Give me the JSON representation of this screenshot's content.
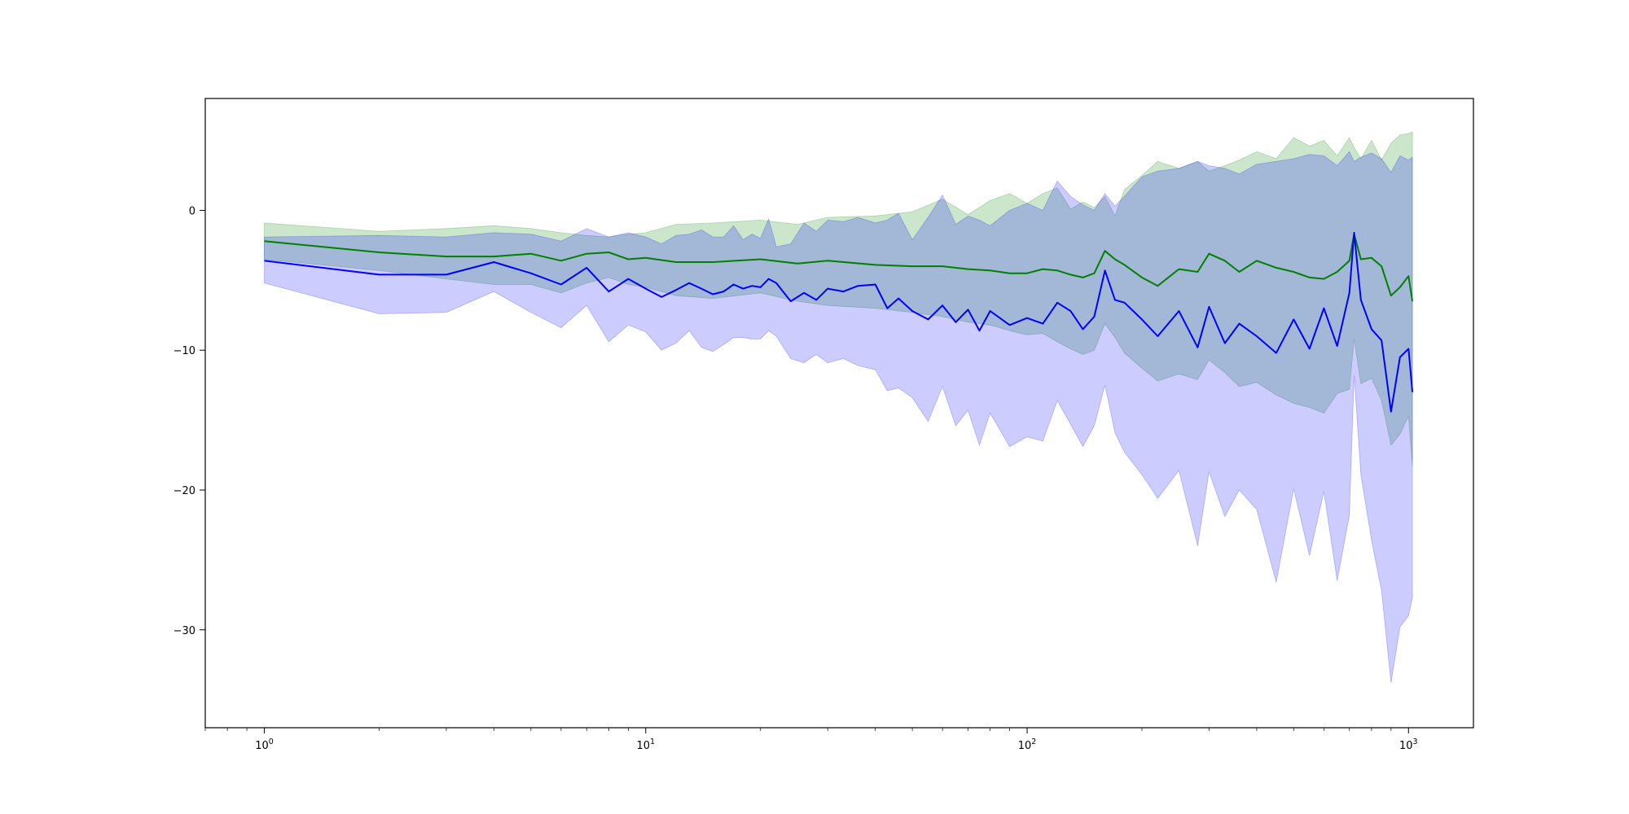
{
  "chart_data": {
    "type": "line",
    "title": "",
    "xlabel": "",
    "ylabel": "",
    "xscale": "log",
    "xlim": [
      0.7,
      1480
    ],
    "ylim": [
      -37,
      8
    ],
    "grid": false,
    "legend": "none",
    "x_ticks": [
      {
        "value": 1,
        "base": "10",
        "exp": "0"
      },
      {
        "value": 10,
        "base": "10",
        "exp": "1"
      },
      {
        "value": 100,
        "base": "10",
        "exp": "2"
      },
      {
        "value": 1000,
        "base": "10",
        "exp": "3"
      }
    ],
    "y_ticks": [
      {
        "value": 0,
        "label": "0"
      },
      {
        "value": -10,
        "label": "−10"
      },
      {
        "value": -20,
        "label": "−20"
      },
      {
        "value": -30,
        "label": "−30"
      }
    ],
    "series": [
      {
        "color": "#008000",
        "band_color": "#008000",
        "band_opacity": 0.2,
        "x": [
          1,
          2,
          3,
          4,
          5,
          6,
          7,
          8,
          9,
          10,
          12,
          15,
          20,
          25,
          30,
          40,
          50,
          60,
          70,
          80,
          90,
          100,
          110,
          120,
          130,
          140,
          150,
          160,
          170,
          180,
          200,
          220,
          250,
          280,
          300,
          330,
          360,
          400,
          450,
          500,
          550,
          600,
          650,
          700,
          720,
          750,
          800,
          850,
          900,
          950,
          1000,
          1024
        ],
        "mean": [
          -2.2,
          -3.0,
          -3.3,
          -3.3,
          -3.1,
          -3.6,
          -3.1,
          -3.0,
          -3.5,
          -3.4,
          -3.7,
          -3.7,
          -3.5,
          -3.8,
          -3.6,
          -3.9,
          -4.0,
          -4.0,
          -4.2,
          -4.3,
          -4.5,
          -4.5,
          -4.2,
          -4.3,
          -4.6,
          -4.8,
          -4.5,
          -2.9,
          -3.5,
          -3.9,
          -4.8,
          -5.4,
          -4.2,
          -4.4,
          -3.1,
          -3.6,
          -4.4,
          -3.6,
          -4.1,
          -4.4,
          -4.8,
          -4.9,
          -4.4,
          -3.6,
          -1.7,
          -3.5,
          -3.4,
          -4.0,
          -6.1,
          -5.5,
          -4.7,
          -6.5
        ],
        "upper": [
          -0.9,
          -1.5,
          -1.3,
          -1.1,
          -1.3,
          -1.6,
          -1.8,
          -1.9,
          -1.7,
          -1.6,
          -1.0,
          -0.9,
          -0.7,
          -1.0,
          -0.5,
          -0.4,
          -0.1,
          0.8,
          -0.3,
          0.7,
          1.2,
          0.5,
          1.2,
          1.6,
          0.1,
          0.6,
          0.2,
          1.0,
          -0.4,
          1.5,
          2.5,
          3.5,
          3.0,
          3.5,
          2.8,
          3.2,
          3.6,
          4.2,
          3.7,
          5.2,
          4.6,
          5.0,
          3.9,
          5.2,
          4.5,
          3.7,
          5.0,
          3.6,
          4.8,
          5.4,
          5.5,
          5.6
        ],
        "lower": [
          -3.5,
          -4.3,
          -4.9,
          -5.3,
          -5.3,
          -5.9,
          -5.2,
          -4.8,
          -5.3,
          -5.5,
          -6.1,
          -6.3,
          -5.9,
          -6.5,
          -6.8,
          -7.0,
          -7.3,
          -7.6,
          -8.0,
          -8.2,
          -8.6,
          -8.9,
          -8.8,
          -9.4,
          -9.9,
          -10.3,
          -10.0,
          -8.1,
          -9.1,
          -10.2,
          -11.3,
          -12.2,
          -11.7,
          -12.1,
          -10.7,
          -11.6,
          -12.6,
          -12.3,
          -13.2,
          -13.8,
          -14.1,
          -14.5,
          -13.1,
          -12.8,
          -9.2,
          -12.4,
          -12.0,
          -13.6,
          -16.8,
          -16.0,
          -14.7,
          -18.3
        ]
      },
      {
        "color": "#0000ff",
        "band_color": "#0000ff",
        "band_opacity": 0.2,
        "x": [
          1,
          2,
          3,
          4,
          5,
          6,
          7,
          8,
          9,
          10,
          11,
          12,
          13,
          14,
          15,
          16,
          17,
          18,
          19,
          20,
          21,
          22,
          24,
          26,
          28,
          30,
          33,
          36,
          40,
          43,
          46,
          50,
          55,
          60,
          65,
          70,
          75,
          80,
          90,
          100,
          110,
          120,
          130,
          140,
          150,
          160,
          170,
          180,
          200,
          220,
          250,
          280,
          300,
          330,
          360,
          400,
          450,
          500,
          550,
          600,
          650,
          700,
          720,
          750,
          800,
          850,
          900,
          950,
          1000,
          1024
        ],
        "mean": [
          -3.6,
          -4.6,
          -4.6,
          -3.7,
          -4.5,
          -5.3,
          -4.1,
          -5.8,
          -4.9,
          -5.6,
          -6.2,
          -5.7,
          -5.2,
          -5.6,
          -6.0,
          -5.8,
          -5.3,
          -5.6,
          -5.4,
          -5.5,
          -4.9,
          -5.2,
          -6.5,
          -5.9,
          -6.4,
          -5.6,
          -5.8,
          -5.4,
          -5.3,
          -7.0,
          -6.3,
          -7.2,
          -7.8,
          -6.8,
          -8.0,
          -7.1,
          -8.6,
          -7.2,
          -8.2,
          -7.7,
          -8.1,
          -6.6,
          -7.2,
          -8.5,
          -7.6,
          -4.3,
          -6.4,
          -6.6,
          -7.8,
          -9.0,
          -7.2,
          -9.8,
          -6.9,
          -9.5,
          -8.1,
          -9.0,
          -10.2,
          -7.8,
          -9.9,
          -7.0,
          -9.7,
          -5.9,
          -1.6,
          -6.4,
          -8.5,
          -9.3,
          -14.4,
          -10.5,
          -9.9,
          -13.0
        ],
        "upper": [
          -1.9,
          -1.8,
          -1.9,
          -1.6,
          -1.7,
          -2.2,
          -1.3,
          -1.9,
          -1.6,
          -1.9,
          -2.4,
          -1.8,
          -1.7,
          -1.4,
          -1.9,
          -1.9,
          -1.1,
          -2.1,
          -1.7,
          -2.0,
          -0.6,
          -2.6,
          -2.4,
          -0.9,
          -1.5,
          -0.7,
          -0.8,
          -0.5,
          -0.9,
          -0.7,
          -0.2,
          -2.1,
          -0.5,
          1.1,
          -1.0,
          -0.4,
          -0.7,
          -1.1,
          0.0,
          0.5,
          0.0,
          2.1,
          1.0,
          0.4,
          0.0,
          1.2,
          0.3,
          1.0,
          2.4,
          2.8,
          3.0,
          3.5,
          3.2,
          3.0,
          2.6,
          3.3,
          3.5,
          3.7,
          4.0,
          3.9,
          3.2,
          4.2,
          3.5,
          3.8,
          4.1,
          3.7,
          2.7,
          3.9,
          3.6,
          3.8
        ],
        "lower": [
          -5.2,
          -7.4,
          -7.3,
          -5.8,
          -7.3,
          -8.4,
          -6.8,
          -9.4,
          -8.2,
          -8.7,
          -10.0,
          -9.5,
          -8.6,
          -9.8,
          -10.1,
          -9.6,
          -9.1,
          -9.1,
          -9.2,
          -9.2,
          -8.6,
          -9.0,
          -10.6,
          -10.9,
          -10.3,
          -10.9,
          -10.6,
          -11.1,
          -11.4,
          -12.9,
          -12.7,
          -13.4,
          -15.1,
          -12.6,
          -15.4,
          -14.3,
          -16.8,
          -14.5,
          -16.9,
          -16.2,
          -16.5,
          -13.6,
          -15.3,
          -16.9,
          -15.4,
          -12.5,
          -15.9,
          -17.3,
          -18.9,
          -20.6,
          -18.6,
          -24.0,
          -18.7,
          -21.9,
          -20.0,
          -21.4,
          -26.6,
          -19.9,
          -24.7,
          -20.1,
          -26.5,
          -21.8,
          -11.8,
          -18.9,
          -23.6,
          -27.2,
          -33.8,
          -29.8,
          -29.0,
          -27.7
        ]
      }
    ]
  }
}
